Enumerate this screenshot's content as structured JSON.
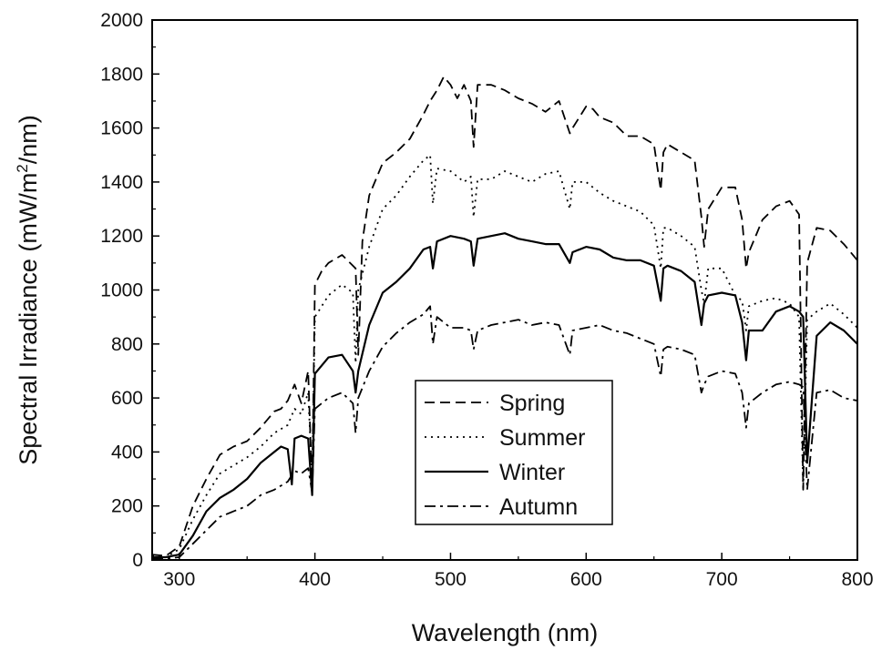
{
  "chart_data": {
    "type": "line",
    "xlabel": "Wavelength (nm)",
    "ylabel": "Spectral Irradiance (mW/m2/nm)",
    "ylabel_parts": {
      "before": "Spectral Irradiance (mW/m",
      "sup": "2",
      "after": "/nm)"
    },
    "xlim": [
      280,
      800
    ],
    "ylim": [
      0,
      2000
    ],
    "x_ticks": [
      300,
      400,
      500,
      600,
      700,
      800
    ],
    "x_tick_labels": [
      "300",
      "400",
      "500",
      "600",
      "700",
      "800"
    ],
    "y_ticks": [
      0,
      200,
      400,
      600,
      800,
      1000,
      1200,
      1400,
      1600,
      1800,
      2000
    ],
    "y_tick_labels": [
      "0",
      "200",
      "400",
      "600",
      "800",
      "1000",
      "1200",
      "1400",
      "1600",
      "1800",
      "2000"
    ],
    "grid": false,
    "legend_position": "bottom-center",
    "series": [
      {
        "name": "Spring",
        "style": "dashed",
        "color": "#000000",
        "x": [
          280,
          290,
          300,
          310,
          320,
          330,
          340,
          350,
          360,
          370,
          375,
          380,
          385,
          390,
          395,
          398,
          400,
          405,
          410,
          420,
          430,
          432,
          435,
          440,
          450,
          460,
          470,
          480,
          485,
          490,
          495,
          500,
          505,
          510,
          515,
          517,
          520,
          530,
          540,
          550,
          560,
          570,
          580,
          588,
          590,
          600,
          605,
          610,
          620,
          630,
          640,
          650,
          655,
          657,
          660,
          670,
          680,
          685,
          687,
          690,
          700,
          710,
          715,
          718,
          720,
          725,
          730,
          740,
          750,
          757,
          760,
          763,
          770,
          780,
          790,
          800
        ],
        "y": [
          20,
          15,
          50,
          200,
          300,
          390,
          420,
          440,
          490,
          550,
          560,
          590,
          650,
          580,
          700,
          260,
          1020,
          1070,
          1100,
          1130,
          1080,
          760,
          1180,
          1350,
          1470,
          1510,
          1560,
          1650,
          1700,
          1740,
          1790,
          1760,
          1710,
          1760,
          1700,
          1530,
          1760,
          1760,
          1740,
          1710,
          1690,
          1660,
          1700,
          1580,
          1600,
          1680,
          1670,
          1640,
          1620,
          1570,
          1570,
          1540,
          1370,
          1510,
          1540,
          1510,
          1480,
          1270,
          1160,
          1300,
          1380,
          1380,
          1260,
          1080,
          1140,
          1200,
          1260,
          1310,
          1330,
          1280,
          260,
          1100,
          1230,
          1220,
          1170,
          1110
        ]
      },
      {
        "name": "Summer",
        "style": "dotted",
        "color": "#000000",
        "x": [
          280,
          290,
          300,
          310,
          320,
          330,
          340,
          350,
          360,
          370,
          380,
          385,
          390,
          395,
          398,
          400,
          405,
          410,
          420,
          428,
          430,
          432,
          440,
          450,
          460,
          470,
          480,
          485,
          487,
          490,
          500,
          510,
          515,
          517,
          520,
          530,
          540,
          550,
          560,
          570,
          580,
          588,
          590,
          600,
          610,
          620,
          630,
          640,
          650,
          655,
          657,
          660,
          670,
          680,
          685,
          687,
          690,
          700,
          710,
          715,
          718,
          720,
          730,
          740,
          750,
          757,
          760,
          763,
          770,
          780,
          790,
          800
        ],
        "y": [
          15,
          10,
          40,
          150,
          240,
          320,
          350,
          380,
          420,
          470,
          500,
          560,
          540,
          620,
          300,
          900,
          940,
          980,
          1020,
          990,
          730,
          1000,
          1160,
          1300,
          1350,
          1420,
          1480,
          1500,
          1320,
          1450,
          1440,
          1400,
          1420,
          1270,
          1410,
          1410,
          1440,
          1420,
          1400,
          1430,
          1440,
          1300,
          1400,
          1400,
          1360,
          1330,
          1310,
          1290,
          1240,
          1080,
          1230,
          1230,
          1200,
          1160,
          1000,
          950,
          1080,
          1080,
          980,
          960,
          850,
          940,
          960,
          970,
          950,
          900,
          260,
          890,
          920,
          950,
          910,
          860
        ]
      },
      {
        "name": "Winter",
        "style": "solid",
        "color": "#000000",
        "x": [
          280,
          290,
          300,
          310,
          320,
          330,
          340,
          350,
          360,
          370,
          375,
          380,
          383,
          385,
          390,
          395,
          398,
          400,
          410,
          420,
          428,
          430,
          432,
          440,
          450,
          460,
          470,
          480,
          485,
          487,
          490,
          500,
          510,
          515,
          517,
          520,
          530,
          540,
          550,
          560,
          570,
          580,
          588,
          590,
          600,
          610,
          620,
          630,
          640,
          650,
          655,
          657,
          660,
          670,
          680,
          685,
          687,
          690,
          700,
          710,
          715,
          718,
          720,
          730,
          740,
          750,
          757,
          760,
          763,
          770,
          780,
          790,
          800
        ],
        "y": [
          10,
          10,
          20,
          90,
          180,
          230,
          260,
          300,
          360,
          400,
          420,
          410,
          280,
          450,
          460,
          450,
          240,
          690,
          750,
          760,
          700,
          620,
          700,
          870,
          990,
          1030,
          1080,
          1150,
          1160,
          1080,
          1180,
          1200,
          1190,
          1180,
          1090,
          1190,
          1200,
          1210,
          1190,
          1180,
          1170,
          1170,
          1100,
          1140,
          1160,
          1150,
          1120,
          1110,
          1110,
          1090,
          960,
          1080,
          1090,
          1070,
          1030,
          870,
          950,
          980,
          990,
          980,
          880,
          740,
          850,
          850,
          920,
          940,
          920,
          900,
          360,
          830,
          880,
          850,
          800
        ]
      },
      {
        "name": "Autumn",
        "style": "dashdot",
        "color": "#000000",
        "x": [
          280,
          290,
          300,
          310,
          320,
          330,
          340,
          350,
          360,
          370,
          380,
          385,
          390,
          395,
          398,
          400,
          410,
          420,
          428,
          430,
          432,
          440,
          450,
          460,
          470,
          480,
          485,
          487,
          490,
          500,
          510,
          515,
          517,
          520,
          530,
          540,
          550,
          560,
          570,
          580,
          588,
          590,
          600,
          610,
          620,
          630,
          640,
          650,
          655,
          657,
          660,
          670,
          680,
          685,
          687,
          690,
          700,
          710,
          715,
          718,
          720,
          730,
          740,
          750,
          757,
          760,
          763,
          770,
          780,
          790,
          800
        ],
        "y": [
          5,
          5,
          10,
          60,
          110,
          160,
          180,
          200,
          240,
          260,
          290,
          330,
          320,
          340,
          250,
          560,
          600,
          620,
          580,
          470,
          600,
          700,
          790,
          840,
          880,
          910,
          940,
          800,
          900,
          860,
          860,
          850,
          780,
          850,
          870,
          880,
          890,
          870,
          880,
          870,
          760,
          850,
          860,
          870,
          850,
          840,
          820,
          800,
          680,
          780,
          790,
          780,
          760,
          620,
          650,
          680,
          700,
          690,
          620,
          490,
          580,
          620,
          650,
          660,
          650,
          640,
          260,
          620,
          630,
          600,
          590
        ]
      }
    ]
  }
}
